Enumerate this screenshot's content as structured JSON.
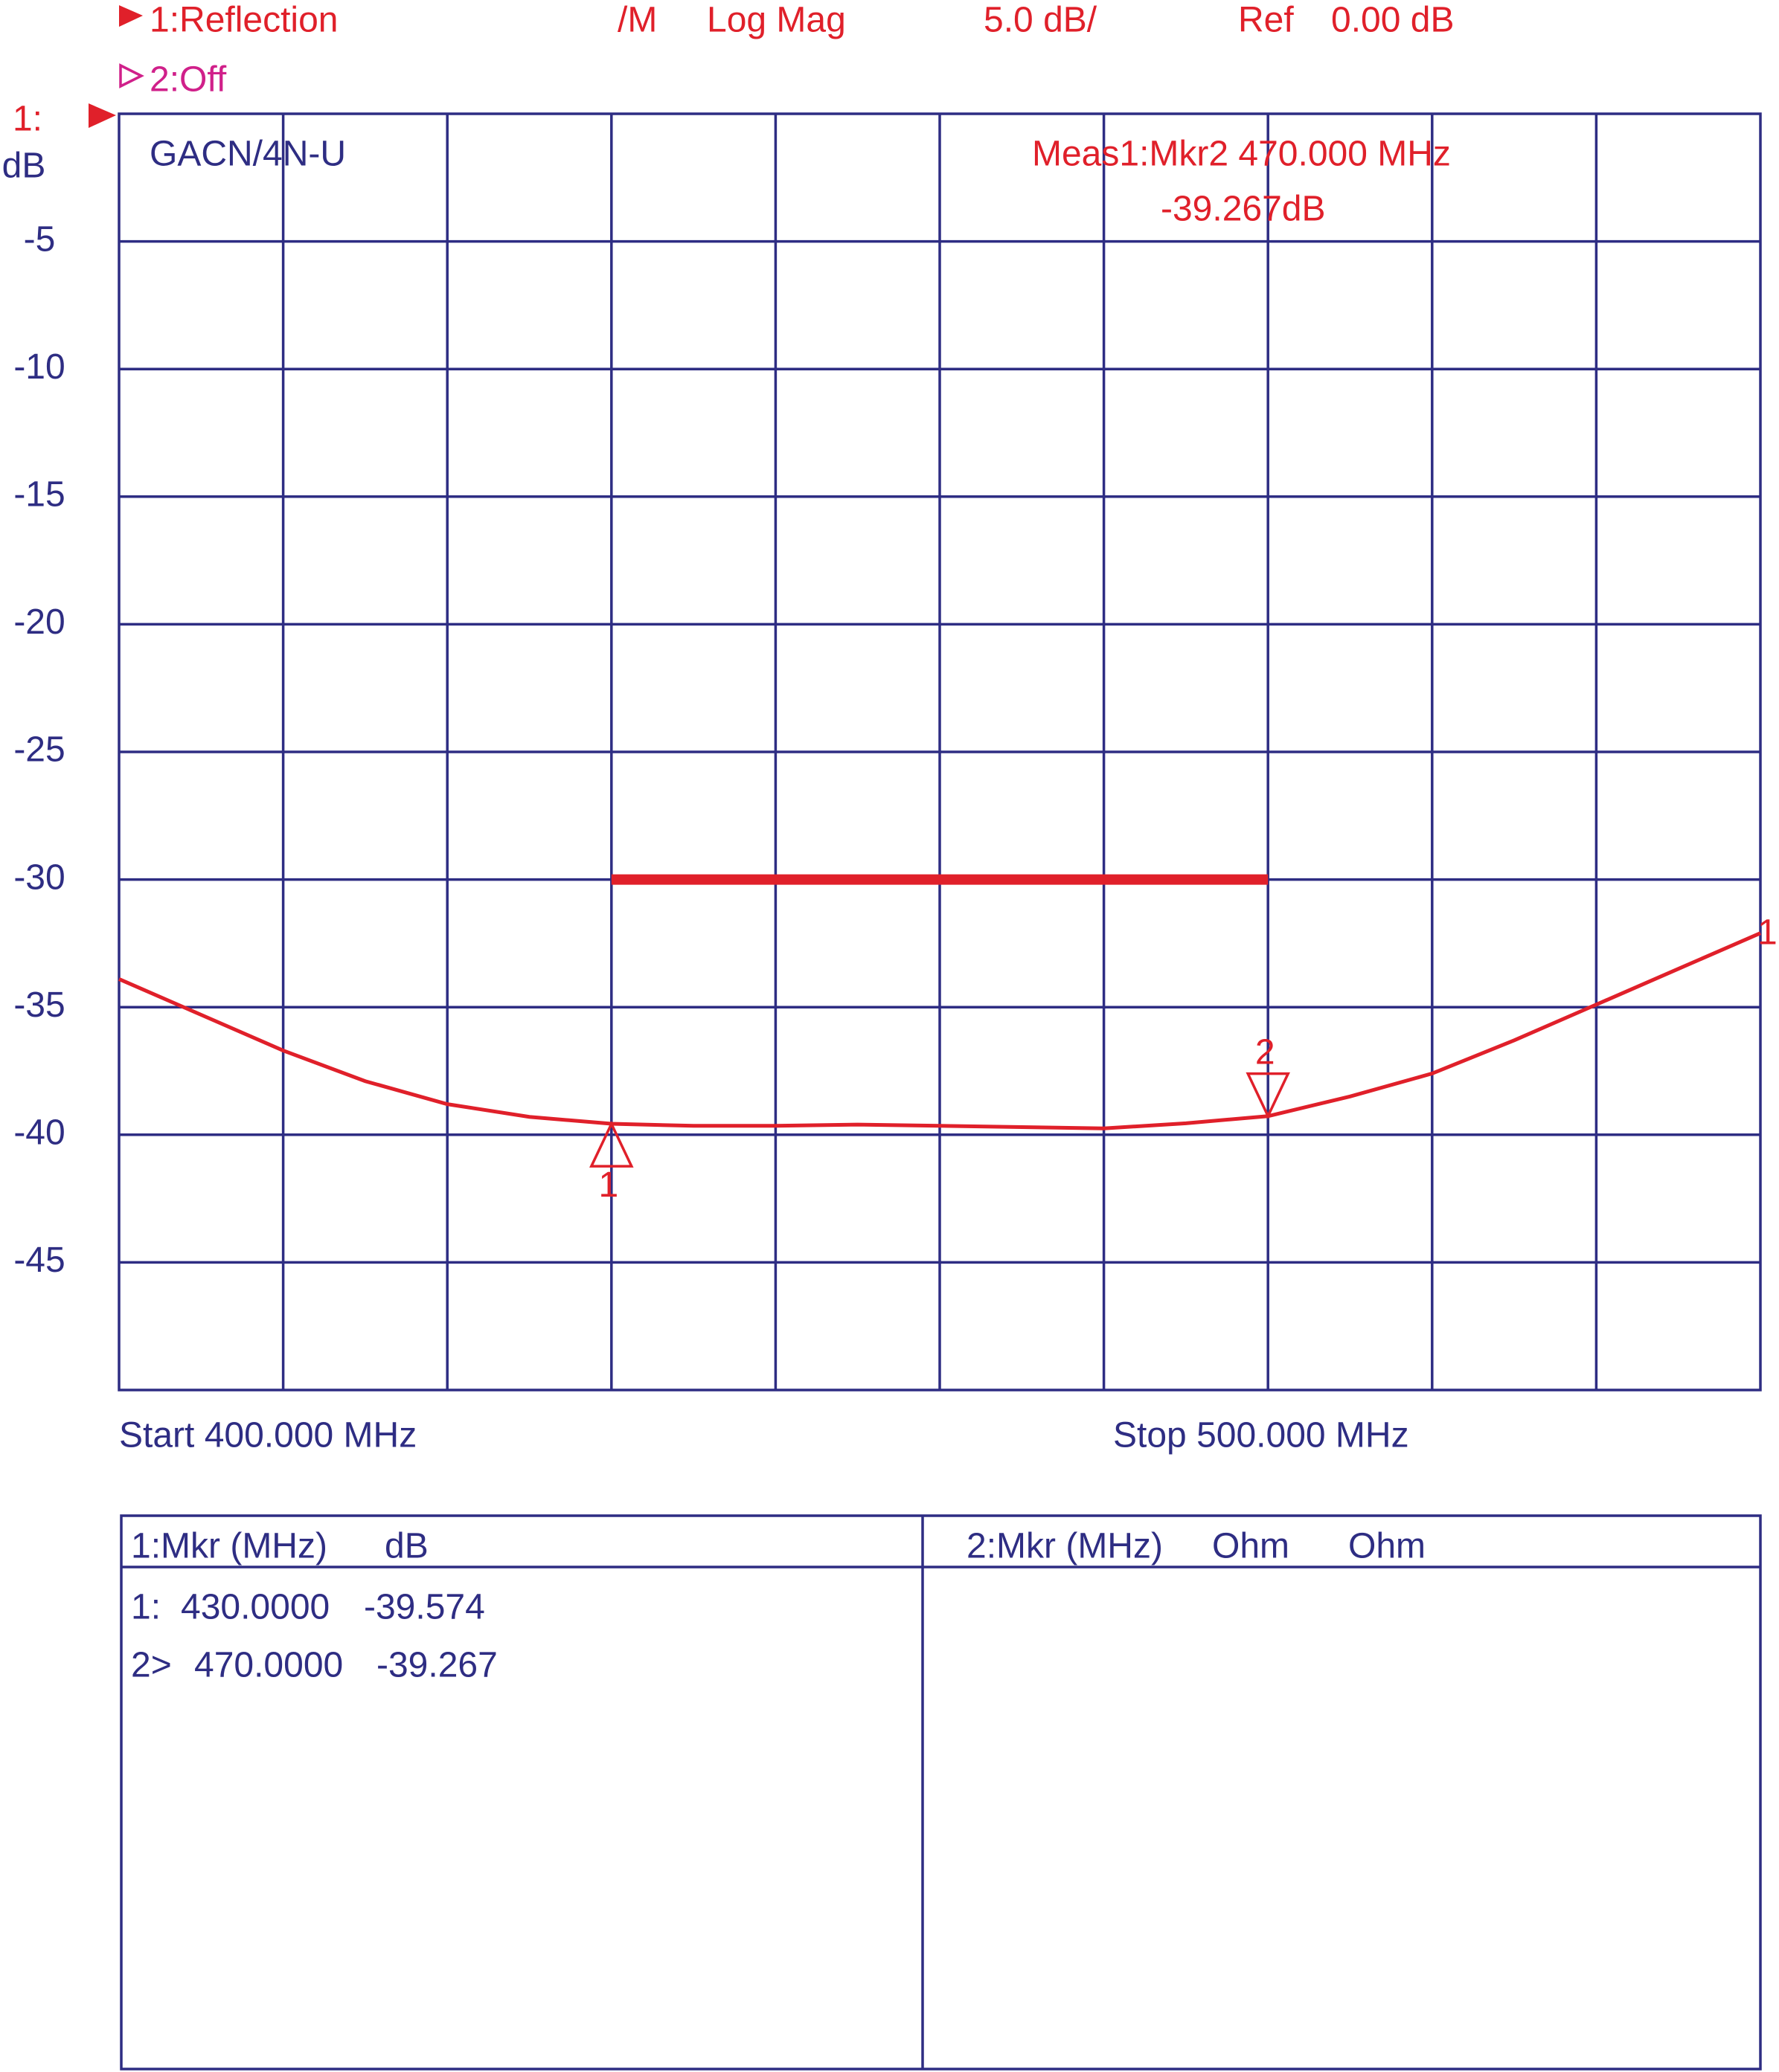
{
  "chart_data": {
    "type": "line",
    "header": {
      "channel1": "1:Reflection",
      "format_mode": "/M",
      "format": "Log Mag",
      "scale": "5.0 dB/",
      "ref_label": "Ref",
      "ref_value": "0.00 dB",
      "channel2": "2:Off"
    },
    "channel_label": "1:",
    "y_label": "dB",
    "title": "GACN/4N-U",
    "measurement": {
      "line1": "Meas1:Mkr2  470.000 MHz",
      "line2": "-39.267dB"
    },
    "start_label": "Start 400.000 MHz",
    "stop_label": "Stop 500.000 MHz",
    "xlim": [
      400,
      500
    ],
    "xticks": [
      410,
      420,
      430,
      440,
      450,
      460,
      470,
      480,
      490
    ],
    "ylim": [
      -50,
      0
    ],
    "yticks": [
      -5,
      -10,
      -15,
      -20,
      -25,
      -30,
      -35,
      -40,
      -45
    ],
    "grid": true,
    "color": "#e0202a",
    "x": [
      400,
      405,
      410,
      415,
      420,
      425,
      430,
      435,
      440,
      445,
      450,
      455,
      460,
      465,
      470,
      475,
      480,
      485,
      490,
      495,
      500
    ],
    "values": [
      -33.9,
      -35.3,
      -36.7,
      -37.9,
      -38.8,
      -39.3,
      -39.57,
      -39.65,
      -39.65,
      -39.6,
      -39.65,
      -39.7,
      -39.75,
      -39.55,
      -39.27,
      -38.5,
      -37.6,
      -36.3,
      -34.9,
      -33.5,
      -32.1
    ],
    "trace_label": "1",
    "limit_line": {
      "x": [
        430,
        470
      ],
      "values": [
        -30,
        -30
      ]
    },
    "markers": [
      {
        "label": "1",
        "x": 430,
        "value": -39.574
      },
      {
        "label": "2",
        "x": 470,
        "value": -39.267
      }
    ],
    "marker_table": {
      "left_header": [
        "1:Mkr (MHz)",
        "dB"
      ],
      "right_header": [
        "2:Mkr (MHz)",
        "Ohm",
        "Ohm"
      ],
      "rows": [
        [
          "1:",
          "430.0000",
          "-39.574"
        ],
        [
          "2>",
          "470.0000",
          "-39.267"
        ]
      ]
    }
  }
}
